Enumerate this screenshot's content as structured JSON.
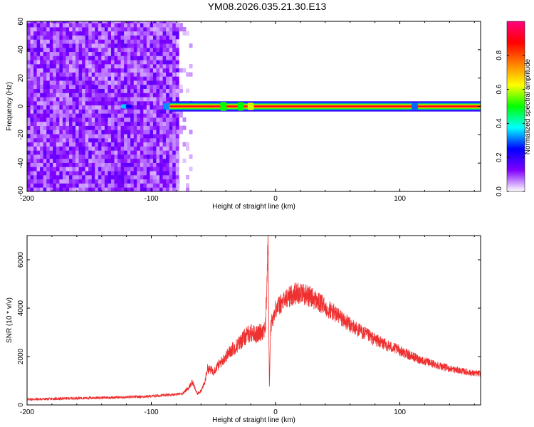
{
  "title": "YM08.2026.035.21.30.E13",
  "chart_data": [
    {
      "type": "heatmap",
      "id": "spectrogram",
      "title": "YM08.2026.035.21.30.E13",
      "xlabel": "Height of straight line (km)",
      "ylabel": "Frequency (Hz)",
      "xlim": [
        -200,
        165
      ],
      "ylim": [
        -60,
        60
      ],
      "xticks": [
        -200,
        -100,
        0,
        100
      ],
      "xtick_labels": [
        "-200",
        "-100",
        "0",
        "100"
      ],
      "yticks": [
        -60,
        -40,
        -20,
        0,
        20,
        40,
        60
      ],
      "ytick_labels": [
        "-60",
        "-40",
        "-20",
        "0",
        "20",
        "40",
        "60"
      ],
      "colorbar": {
        "label": "Normalized spectral amplitude",
        "range": [
          0,
          1
        ],
        "ticks": [
          0,
          0.2,
          0.4,
          0.6,
          0.8
        ],
        "tick_labels": [
          "0.0",
          "0.2",
          "0.4",
          "0.6",
          "0.8"
        ],
        "colormap": [
          "#ffffff",
          "#8000ff",
          "#0000ff",
          "#00ffff",
          "#00ff00",
          "#ffff00",
          "#ff8000",
          "#ff0000",
          "#ff0080"
        ]
      },
      "regions": [
        {
          "description": "broadband noise",
          "x": [
            -200,
            -80
          ],
          "y": [
            -60,
            60
          ],
          "amplitude": 0.1
        },
        {
          "description": "sparse noise",
          "x": [
            -80,
            -68
          ],
          "y": [
            -60,
            60
          ],
          "amplitude": 0.05
        },
        {
          "description": "narrow band signal",
          "x": [
            -120,
            165
          ],
          "y": [
            -2,
            2
          ],
          "amplitude": 0.95
        }
      ],
      "grid": false
    },
    {
      "type": "line",
      "id": "snr",
      "xlabel": "Height of straight line (km)",
      "ylabel": "SNR (10 * v/v)",
      "xlim": [
        -200,
        165
      ],
      "ylim": [
        0,
        7000
      ],
      "xticks": [
        -200,
        -100,
        0,
        100
      ],
      "xtick_labels": [
        "-200",
        "-100",
        "0",
        "100"
      ],
      "yticks": [
        0,
        2000,
        4000,
        6000
      ],
      "ytick_labels": [
        "0",
        "2000",
        "4000",
        "6000"
      ],
      "color": "#ee3030",
      "grid": false,
      "series": [
        {
          "x": [
            -200,
            -180,
            -160,
            -140,
            -120,
            -100,
            -85,
            -75,
            -70,
            -67,
            -63,
            -60,
            -57,
            -55,
            -50,
            -45,
            -40,
            -35,
            -30,
            -25,
            -20,
            -15,
            -10,
            -8,
            -6,
            -5,
            -4,
            -3,
            -1,
            0,
            5,
            10,
            15,
            20,
            25,
            30,
            40,
            50,
            60,
            70,
            80,
            90,
            100,
            110,
            120,
            130,
            140,
            150,
            160,
            165
          ],
          "y": [
            230,
            250,
            280,
            300,
            320,
            360,
            420,
            470,
            700,
            950,
            450,
            600,
            900,
            1500,
            1400,
            1700,
            2000,
            2300,
            2500,
            2800,
            3000,
            2900,
            3100,
            3300,
            6950,
            700,
            3200,
            3500,
            3700,
            4000,
            4200,
            4450,
            4600,
            4650,
            4550,
            4400,
            4050,
            3700,
            3300,
            3000,
            2700,
            2450,
            2250,
            2000,
            1800,
            1650,
            1500,
            1400,
            1300,
            1300
          ]
        }
      ]
    }
  ]
}
